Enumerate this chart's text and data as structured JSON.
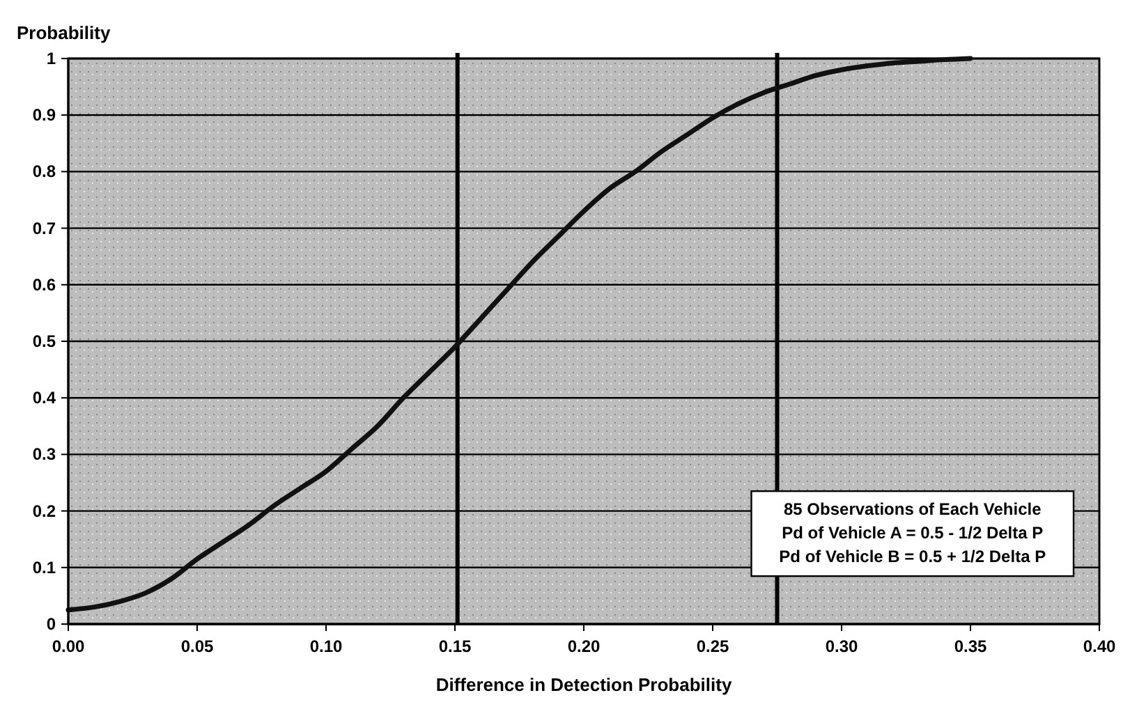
{
  "chart_data": {
    "type": "line",
    "xlabel": "Difference in Detection Probability",
    "ylabel": "Probability",
    "x": [
      0,
      0.01,
      0.02,
      0.03,
      0.04,
      0.05,
      0.06,
      0.07,
      0.08,
      0.09,
      0.1,
      0.11,
      0.12,
      0.13,
      0.14,
      0.15,
      0.16,
      0.17,
      0.18,
      0.19,
      0.2,
      0.21,
      0.22,
      0.23,
      0.24,
      0.25,
      0.26,
      0.27,
      0.28,
      0.29,
      0.3,
      0.31,
      0.32,
      0.33,
      0.34,
      0.35
    ],
    "series": [
      {
        "color": "#111111",
        "values": [
          0.025,
          0.03,
          0.04,
          0.055,
          0.08,
          0.115,
          0.145,
          0.175,
          0.21,
          0.24,
          0.27,
          0.31,
          0.35,
          0.4,
          0.445,
          0.49,
          0.54,
          0.59,
          0.64,
          0.685,
          0.73,
          0.77,
          0.8,
          0.835,
          0.865,
          0.895,
          0.92,
          0.94,
          0.955,
          0.97,
          0.98,
          0.987,
          0.992,
          0.995,
          0.998,
          1.0
        ]
      }
    ],
    "xlim": [
      0,
      0.4
    ],
    "xticks": [
      {
        "value": 0,
        "label": "0.00"
      },
      {
        "value": 0.05,
        "label": "0.05"
      },
      {
        "value": 0.1,
        "label": "0.10"
      },
      {
        "value": 0.15,
        "label": "0.15"
      },
      {
        "value": 0.2,
        "label": "0.20"
      },
      {
        "value": 0.25,
        "label": "0.25"
      },
      {
        "value": 0.3,
        "label": "0.30"
      },
      {
        "value": 0.35,
        "label": "0.35"
      },
      {
        "value": 0.4,
        "label": "0.40"
      }
    ],
    "ylim": [
      0,
      1
    ],
    "yticks": [
      0,
      0.1,
      0.2,
      0.3,
      0.4,
      0.5,
      0.6,
      0.7,
      0.8,
      0.9,
      1
    ],
    "grid": "y",
    "ref_lines": [
      {
        "axis": "x",
        "value": 0.151,
        "color": "#000000"
      },
      {
        "axis": "x",
        "value": 0.275,
        "color": "#000000"
      }
    ],
    "annotations": [
      "85 Observations of Each Vehicle",
      "Pd of Vehicle A = 0.5 - 1/2 Delta P",
      "Pd of Vehicle B = 0.5 + 1/2 Delta P"
    ]
  }
}
